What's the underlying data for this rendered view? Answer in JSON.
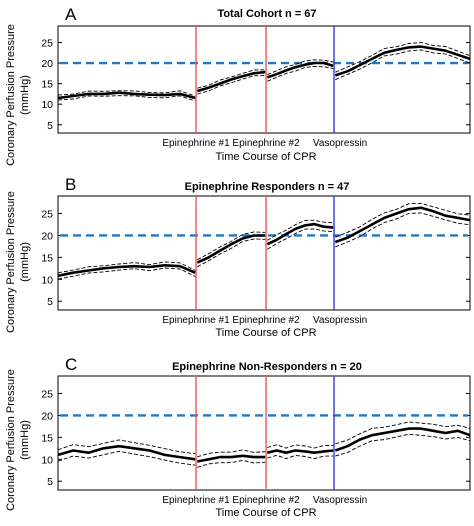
{
  "colors": {
    "threshold": "#1f77c8",
    "epinephrine": "#e8585a",
    "vasopressin": "#3a3ae0",
    "mean_line": "#000000",
    "ci_line": "#000000"
  },
  "chart_data": [
    {
      "type": "line",
      "panel": "A",
      "title": "Total Cohort n = 67",
      "xlabel": "Time Course of CPR",
      "ylabel": "Coronary Perfusion Pressure (mmHg)",
      "ylim": [
        3,
        29
      ],
      "yticks": [
        5,
        10,
        15,
        20,
        25
      ],
      "threshold": 20,
      "events": [
        {
          "label": "Epinephrine #1",
          "kind": "epinephrine"
        },
        {
          "label": "Epinephrine #2",
          "kind": "epinephrine"
        },
        {
          "label": "Vasopressin",
          "kind": "vasopressin"
        }
      ],
      "segments": [
        {
          "name": "baseline",
          "mean": [
            11.5,
            12.0,
            12.5,
            12.5,
            12.8,
            12.5,
            12.3,
            12.2,
            12.5,
            11.5
          ],
          "ci": 0.6
        },
        {
          "name": "after epinephrine #1",
          "mean": [
            13.2,
            14.0,
            15.0,
            16.0,
            16.8,
            17.5,
            17.8
          ],
          "ci": 0.7
        },
        {
          "name": "after epinephrine #2",
          "mean": [
            16.5,
            17.3,
            18.2,
            19.0,
            19.6,
            20.0,
            20.0,
            19.3
          ],
          "ci": 0.8
        },
        {
          "name": "after vasopressin",
          "mean": [
            17.0,
            18.0,
            19.5,
            21.0,
            22.5,
            23.2,
            23.8,
            24.0,
            23.5,
            23.0,
            22.0,
            21.0
          ],
          "ci": 0.9
        }
      ]
    },
    {
      "type": "line",
      "panel": "B",
      "title": "Epinephrine Responders n = 47",
      "xlabel": "Time Course of CPR",
      "ylabel": "Coronary Perfusion Pressure (mmHg)",
      "ylim": [
        3,
        29
      ],
      "yticks": [
        5,
        10,
        15,
        20,
        25
      ],
      "threshold": 20,
      "events": [
        {
          "label": "Epinephrine #1",
          "kind": "epinephrine"
        },
        {
          "label": "Epinephrine #2",
          "kind": "epinephrine"
        },
        {
          "label": "Vasopressin",
          "kind": "vasopressin"
        }
      ],
      "segments": [
        {
          "name": "baseline",
          "mean": [
            10.8,
            11.5,
            12.0,
            12.5,
            12.8,
            13.0,
            12.8,
            13.2,
            13.0,
            11.5
          ],
          "ci": 0.7
        },
        {
          "name": "after epinephrine #1",
          "mean": [
            13.8,
            15.0,
            16.5,
            18.0,
            19.3,
            20.0,
            20.0
          ],
          "ci": 0.8
        },
        {
          "name": "after epinephrine #2",
          "mean": [
            18.0,
            19.0,
            20.3,
            21.5,
            22.3,
            22.6,
            22.0,
            21.8
          ],
          "ci": 1.0
        },
        {
          "name": "after vasopressin",
          "mean": [
            18.5,
            19.5,
            21.0,
            22.5,
            24.0,
            25.0,
            26.0,
            26.3,
            25.5,
            24.5,
            24.0,
            23.5
          ],
          "ci": 1.1
        }
      ]
    },
    {
      "type": "line",
      "panel": "C",
      "title": "Epinephrine Non-Responders n = 20",
      "xlabel": "Time Course of CPR",
      "ylabel": "Coronary Perfusion Pressure (mmHg)",
      "ylim": [
        3,
        29
      ],
      "yticks": [
        5,
        10,
        15,
        20,
        25
      ],
      "threshold": 20,
      "events": [
        {
          "label": "Epinephrine #1",
          "kind": "epinephrine"
        },
        {
          "label": "Epinephrine #2",
          "kind": "epinephrine"
        },
        {
          "label": "Vasopressin",
          "kind": "vasopressin"
        }
      ],
      "segments": [
        {
          "name": "baseline",
          "mean": [
            11.0,
            12.0,
            11.5,
            12.5,
            13.0,
            12.5,
            12.0,
            11.0,
            10.5,
            10.0
          ],
          "ci": 1.3
        },
        {
          "name": "after epinephrine #1",
          "mean": [
            9.5,
            10.0,
            10.5,
            10.5,
            10.8,
            10.5,
            10.5
          ],
          "ci": 1.2
        },
        {
          "name": "after epinephrine #2",
          "mean": [
            11.5,
            12.0,
            11.5,
            12.0,
            11.8,
            11.5,
            11.8,
            12.0
          ],
          "ci": 1.2
        },
        {
          "name": "after vasopressin",
          "mean": [
            12.0,
            13.0,
            14.5,
            15.5,
            16.0,
            16.5,
            17.0,
            17.0,
            16.5,
            16.0,
            16.5,
            15.5
          ],
          "ci": 1.4
        }
      ]
    }
  ]
}
